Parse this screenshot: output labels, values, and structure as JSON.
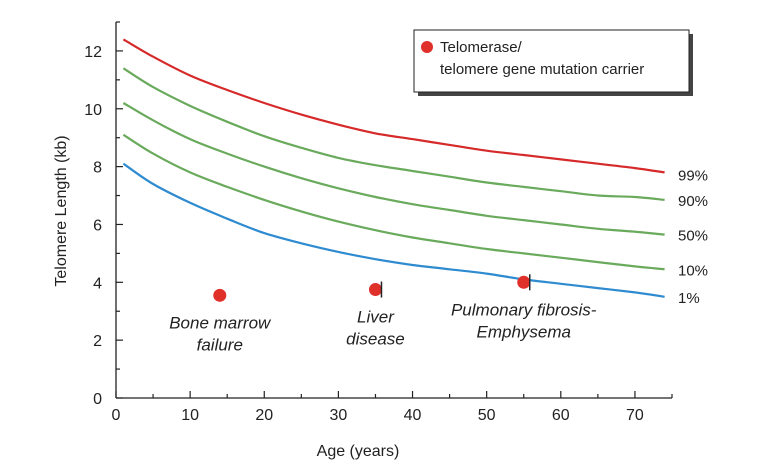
{
  "chart_data": {
    "type": "line",
    "xlabel": "Age (years)",
    "ylabel": "Telomere Length (kb)",
    "xlim": [
      0,
      75
    ],
    "ylim": [
      0,
      13
    ],
    "xticks": [
      "0",
      "10",
      "20",
      "30",
      "40",
      "50",
      "60",
      "70"
    ],
    "yticks": [
      "0",
      "2",
      "4",
      "6",
      "8",
      "10",
      "12"
    ],
    "grid": false,
    "x": [
      1,
      5,
      10,
      15,
      20,
      25,
      30,
      35,
      40,
      45,
      50,
      55,
      60,
      65,
      70,
      74
    ],
    "series": [
      {
        "name": "99%",
        "color": "#d62a2a",
        "values": [
          12.4,
          11.8,
          11.15,
          10.65,
          10.2,
          9.8,
          9.45,
          9.15,
          8.95,
          8.75,
          8.55,
          8.4,
          8.25,
          8.1,
          7.95,
          7.8
        ]
      },
      {
        "name": "90%",
        "color": "#6aaa5c",
        "values": [
          11.4,
          10.75,
          10.1,
          9.55,
          9.05,
          8.65,
          8.3,
          8.05,
          7.85,
          7.65,
          7.45,
          7.3,
          7.15,
          7.0,
          6.95,
          6.85
        ]
      },
      {
        "name": "50%",
        "color": "#6aaa5c",
        "values": [
          10.2,
          9.6,
          8.95,
          8.45,
          8.0,
          7.6,
          7.25,
          6.95,
          6.7,
          6.5,
          6.3,
          6.15,
          6.0,
          5.85,
          5.75,
          5.65
        ]
      },
      {
        "name": "10%",
        "color": "#6aaa5c",
        "values": [
          9.1,
          8.45,
          7.8,
          7.3,
          6.85,
          6.45,
          6.1,
          5.8,
          5.55,
          5.35,
          5.15,
          5.0,
          4.85,
          4.7,
          4.55,
          4.45
        ]
      },
      {
        "name": "1%",
        "color": "#2f8bd0",
        "values": [
          8.1,
          7.4,
          6.75,
          6.2,
          5.7,
          5.35,
          5.05,
          4.8,
          4.6,
          4.45,
          4.3,
          4.1,
          3.95,
          3.8,
          3.65,
          3.5
        ]
      }
    ],
    "points": [
      {
        "x": 14,
        "y": 3.55,
        "label_lines": [
          "Bone marrow",
          "failure"
        ]
      },
      {
        "x": 35,
        "y": 3.75,
        "label_lines": [
          "Liver",
          "disease"
        ]
      },
      {
        "x": 55,
        "y": 4.0,
        "label_lines": [
          "Pulmonary fibrosis-",
          "Emphysema"
        ]
      }
    ],
    "legend": {
      "position": "top-right",
      "lines": [
        "Telomerase/",
        "telomere gene mutation carrier"
      ],
      "marker_color": "#e0302a"
    }
  }
}
